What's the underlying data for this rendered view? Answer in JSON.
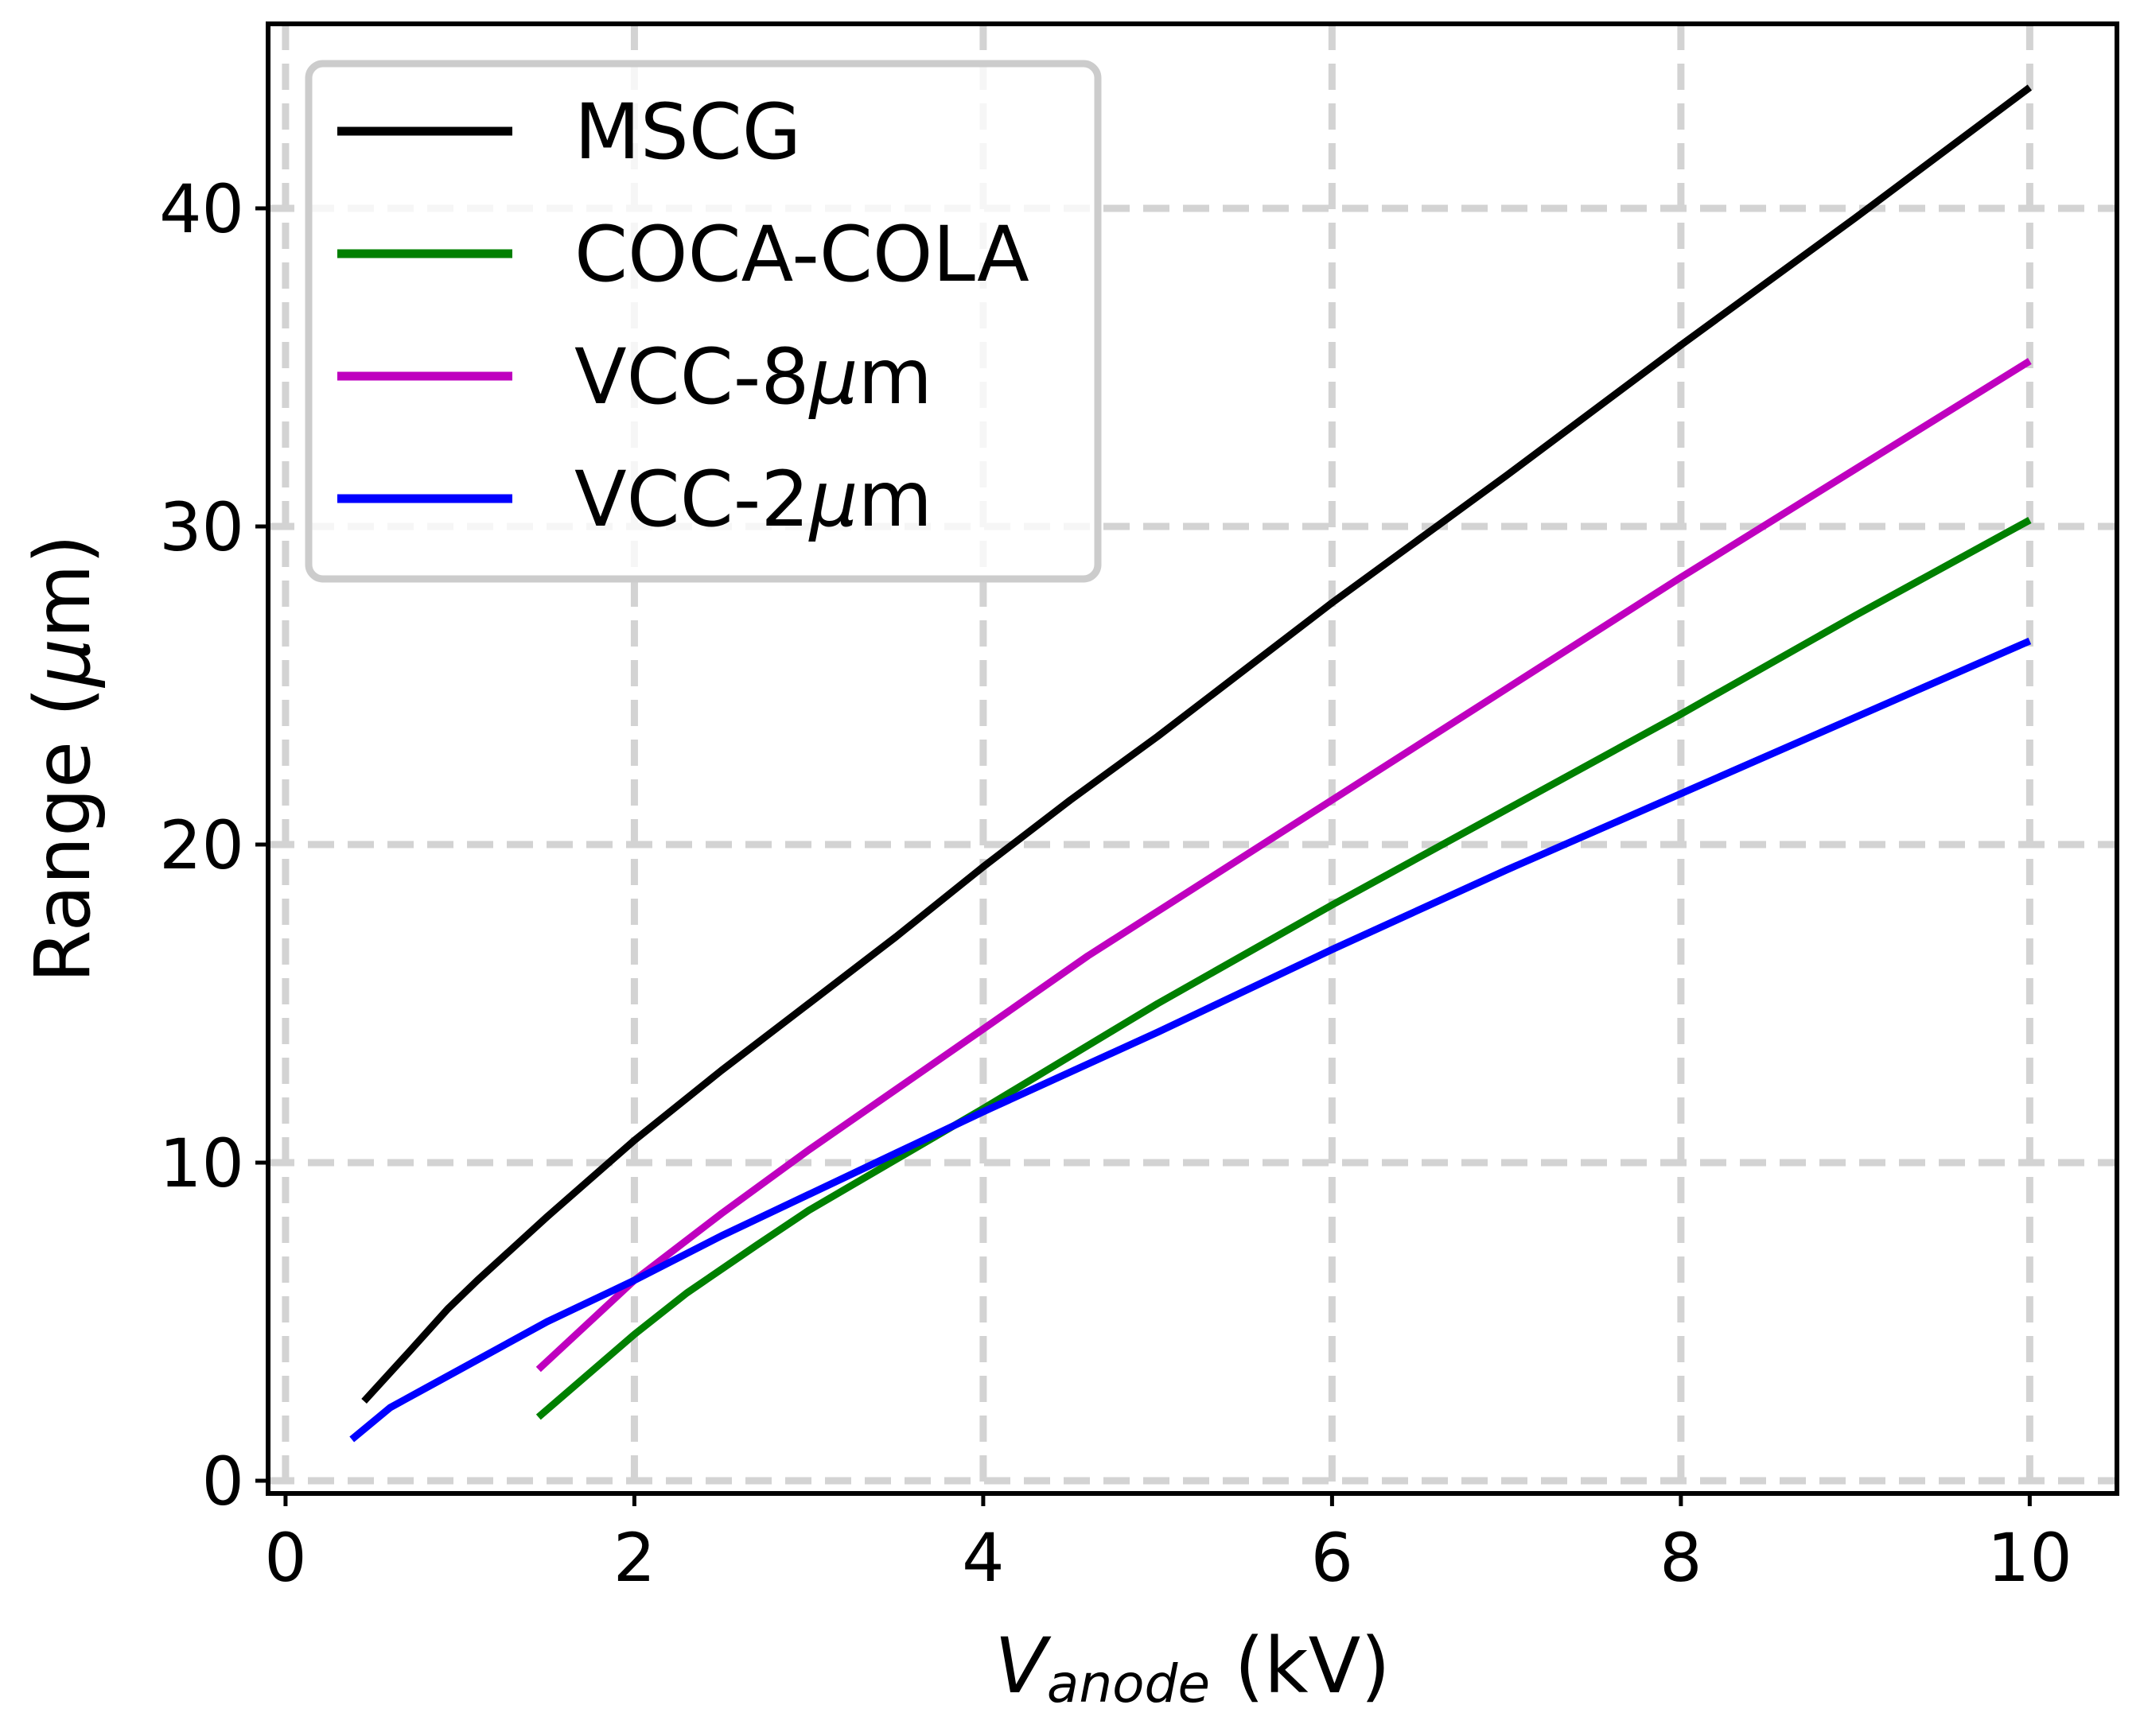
{
  "chart_data": {
    "type": "line",
    "title": "",
    "xlabel_main": "V",
    "xlabel_sub": "anode",
    "xlabel_unit": " (kV)",
    "ylabel_main": "Range (",
    "ylabel_mu": "μ",
    "ylabel_rest": "m)",
    "xlim": [
      -0.1,
      10.5
    ],
    "ylim": [
      -0.4,
      45.8
    ],
    "grid": true,
    "legend_position": "top-left",
    "x_ticks": [
      0,
      2,
      4,
      6,
      8,
      10
    ],
    "x_tick_labels": [
      "0",
      "2",
      "4",
      "6",
      "8",
      "10"
    ],
    "y_ticks": [
      0,
      10,
      20,
      30,
      40
    ],
    "y_tick_labels": [
      "0",
      "10",
      "20",
      "30",
      "40"
    ],
    "series": [
      {
        "name": "MSCG",
        "color": "#000000",
        "legend_main": "MSCG",
        "legend_mu": "",
        "legend_rest": "",
        "x": [
          0.45,
          0.7,
          0.93,
          1.1,
          1.5,
          2.0,
          2.5,
          3.0,
          3.5,
          4.0,
          4.5,
          5.0,
          5.5,
          6.0,
          7.0,
          8.0,
          9.0,
          10.0
        ],
        "y": [
          2.5,
          4.0,
          5.4,
          6.3,
          8.3,
          10.7,
          12.9,
          15.0,
          17.1,
          19.3,
          21.4,
          23.4,
          25.5,
          27.6,
          31.6,
          35.7,
          39.7,
          43.8
        ]
      },
      {
        "name": "COCA-COLA",
        "color": "#008000",
        "legend_main": "COCA-COLA",
        "legend_mu": "",
        "legend_rest": "",
        "x": [
          1.45,
          2.0,
          2.3,
          2.7,
          3.0,
          3.5,
          4.0,
          5.0,
          6.0,
          7.0,
          8.0,
          9.0,
          10.0
        ],
        "y": [
          2.0,
          4.6,
          5.9,
          7.4,
          8.5,
          10.1,
          11.7,
          15.0,
          18.1,
          21.1,
          24.1,
          27.2,
          30.2
        ]
      },
      {
        "name": "VCC-8μm",
        "color": "#bf00bf",
        "legend_main": "VCC-8",
        "legend_mu": "μ",
        "legend_rest": "m",
        "x": [
          1.45,
          2.0,
          2.5,
          3.0,
          3.5,
          4.0,
          4.6,
          5.0,
          6.0,
          7.0,
          8.0,
          9.0,
          10.0
        ],
        "y": [
          3.5,
          6.3,
          8.4,
          10.4,
          12.3,
          14.2,
          16.5,
          17.9,
          21.4,
          24.9,
          28.4,
          31.8,
          35.2
        ]
      },
      {
        "name": "VCC-2μm",
        "color": "#0000ff",
        "legend_main": "VCC-2",
        "legend_mu": "μ",
        "legend_rest": "m",
        "x": [
          0.38,
          0.6,
          0.8,
          1.0,
          1.5,
          2.0,
          2.5,
          3.0,
          3.5,
          4.0,
          5.0,
          6.0,
          7.0,
          8.0,
          9.0,
          10.0
        ],
        "y": [
          1.3,
          2.3,
          2.9,
          3.5,
          5.0,
          6.3,
          7.7,
          9.0,
          10.3,
          11.6,
          14.1,
          16.7,
          19.2,
          21.6,
          24.0,
          26.4
        ]
      }
    ]
  }
}
